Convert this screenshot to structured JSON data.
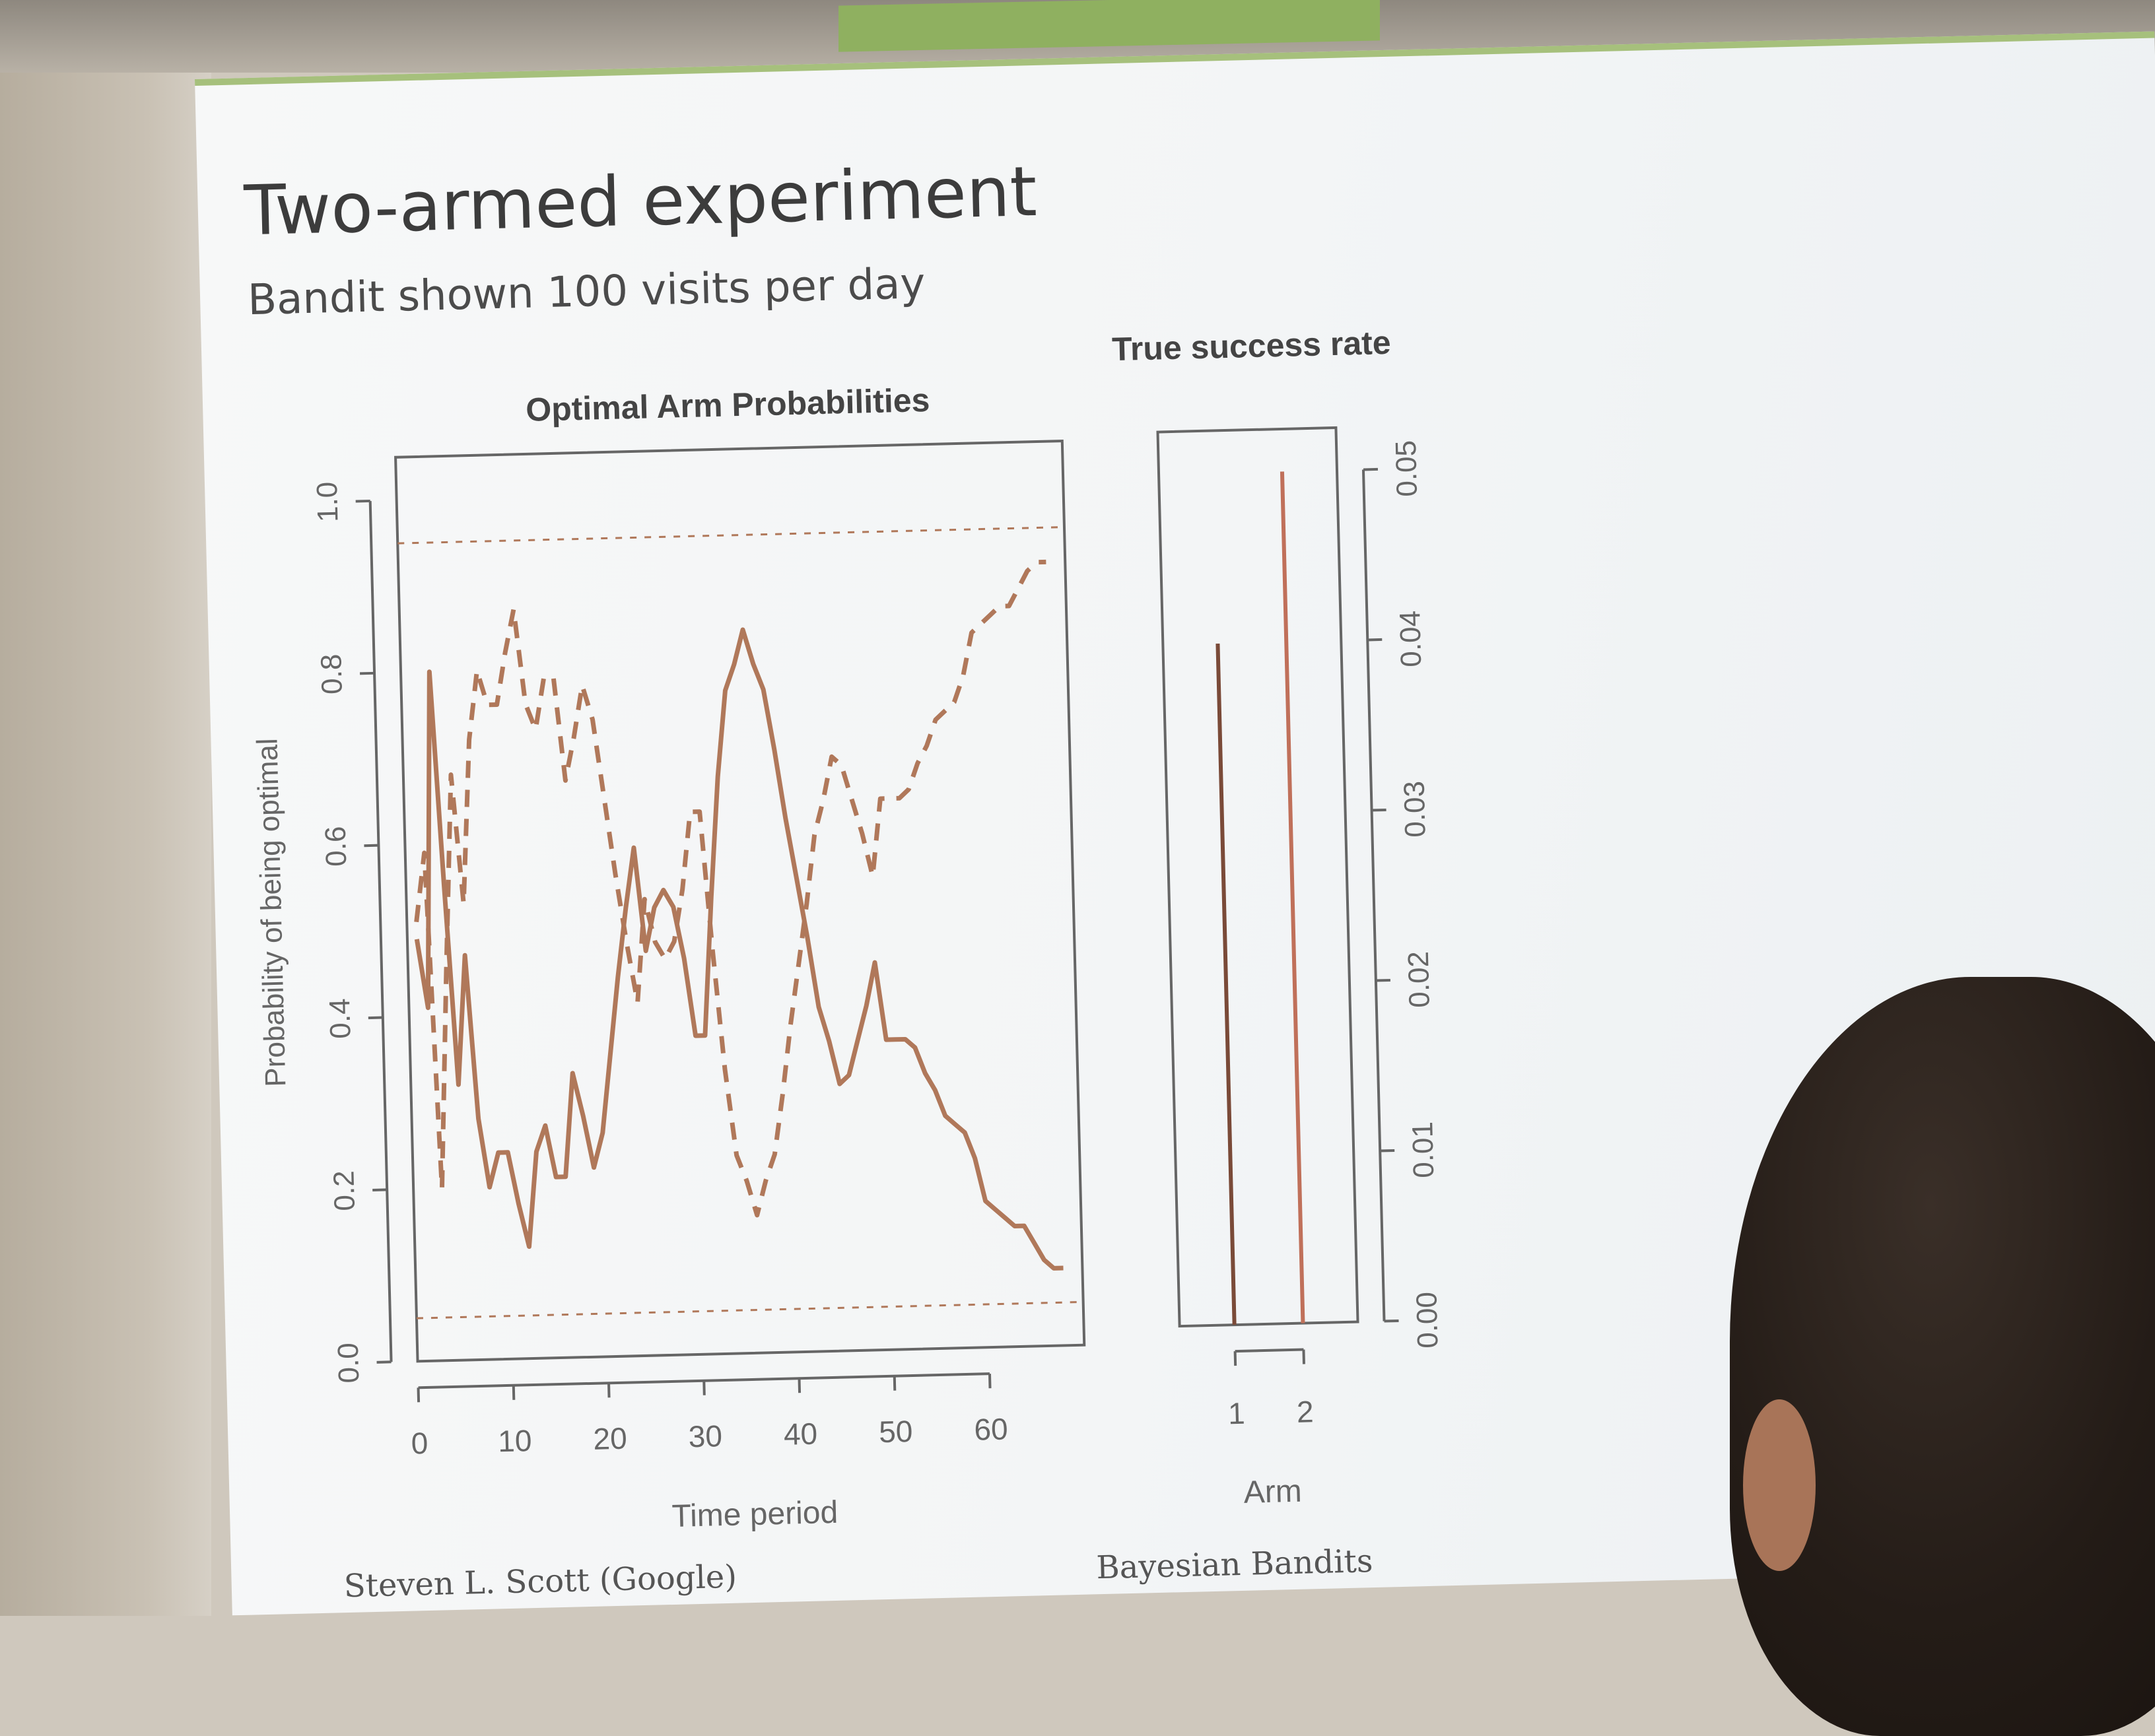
{
  "slide": {
    "title": "Two-armed experiment",
    "subtitle": "Bandit shown 100 visits per day",
    "footer_author": "Steven L. Scott (Google)",
    "footer_talk": "Bayesian Bandits"
  },
  "colors": {
    "line": "#b0785a",
    "bar_arm1": "#7a4a38",
    "bar_arm2": "#c0705a",
    "axis": "#666666"
  },
  "chart_data": [
    {
      "type": "line",
      "title": "Optimal Arm Probabilities",
      "xlabel": "Time period",
      "ylabel": "Probability of being optimal",
      "xlim": [
        0,
        70
      ],
      "ylim": [
        0,
        1.05
      ],
      "x_ticks": [
        0,
        10,
        20,
        30,
        40,
        50,
        60
      ],
      "y_ticks": [
        0.0,
        0.2,
        0.4,
        0.6,
        0.8,
        1.0
      ],
      "grid": false,
      "reference_lines": [
        0.05,
        0.95
      ],
      "x": [
        1,
        2,
        3,
        4,
        5,
        6,
        7,
        8,
        9,
        10,
        11,
        12,
        13,
        14,
        15,
        16,
        17,
        18,
        19,
        20,
        21,
        22,
        23,
        24,
        25,
        26,
        27,
        28,
        29,
        30,
        31,
        32,
        33,
        34,
        35,
        36,
        37,
        38,
        39,
        40,
        41,
        42,
        43,
        44,
        45,
        46,
        47,
        48,
        49,
        50,
        51,
        52,
        53,
        54,
        55,
        56,
        57,
        58,
        59,
        60,
        61,
        62,
        63,
        64,
        65,
        66,
        67,
        68
      ],
      "series": [
        {
          "style": "solid",
          "values": [
            0.49,
            0.41,
            0.8,
            0.55,
            0.32,
            0.47,
            0.28,
            0.2,
            0.24,
            0.24,
            0.18,
            0.13,
            0.24,
            0.27,
            0.21,
            0.21,
            0.33,
            0.28,
            0.22,
            0.26,
            0.35,
            0.44,
            0.52,
            0.59,
            0.47,
            0.52,
            0.54,
            0.52,
            0.46,
            0.37,
            0.37,
            0.53,
            0.67,
            0.77,
            0.8,
            0.84,
            0.8,
            0.77,
            0.7,
            0.62,
            0.55,
            0.48,
            0.4,
            0.36,
            0.31,
            0.32,
            0.36,
            0.4,
            0.45,
            0.36,
            0.36,
            0.36,
            0.35,
            0.32,
            0.3,
            0.27,
            0.26,
            0.25,
            0.22,
            0.17,
            0.16,
            0.15,
            0.14,
            0.14,
            0.12,
            0.1,
            0.09,
            0.09
          ]
        },
        {
          "style": "dashed",
          "values": [
            0.51,
            0.59,
            0.2,
            0.45,
            0.68,
            0.53,
            0.72,
            0.8,
            0.76,
            0.76,
            0.82,
            0.87,
            0.76,
            0.73,
            0.79,
            0.79,
            0.67,
            0.72,
            0.78,
            0.74,
            0.65,
            0.56,
            0.48,
            0.41,
            0.53,
            0.48,
            0.46,
            0.48,
            0.54,
            0.63,
            0.63,
            0.47,
            0.33,
            0.23,
            0.2,
            0.16,
            0.2,
            0.23,
            0.3,
            0.38,
            0.45,
            0.52,
            0.6,
            0.64,
            0.69,
            0.68,
            0.64,
            0.6,
            0.55,
            0.64,
            0.64,
            0.64,
            0.65,
            0.68,
            0.7,
            0.73,
            0.74,
            0.75,
            0.78,
            0.83,
            0.84,
            0.85,
            0.86,
            0.86,
            0.88,
            0.9,
            0.91,
            0.91
          ]
        }
      ]
    },
    {
      "type": "bar",
      "title": "True success rate",
      "xlabel": "Arm",
      "ylabel": "",
      "categories": [
        "1",
        "2"
      ],
      "values": [
        0.04,
        0.05
      ],
      "ylim": [
        0,
        0.0525
      ],
      "y_ticks": [
        0.0,
        0.01,
        0.02,
        0.03,
        0.04,
        0.05
      ],
      "y_axis_side": "right",
      "grid": false
    }
  ]
}
